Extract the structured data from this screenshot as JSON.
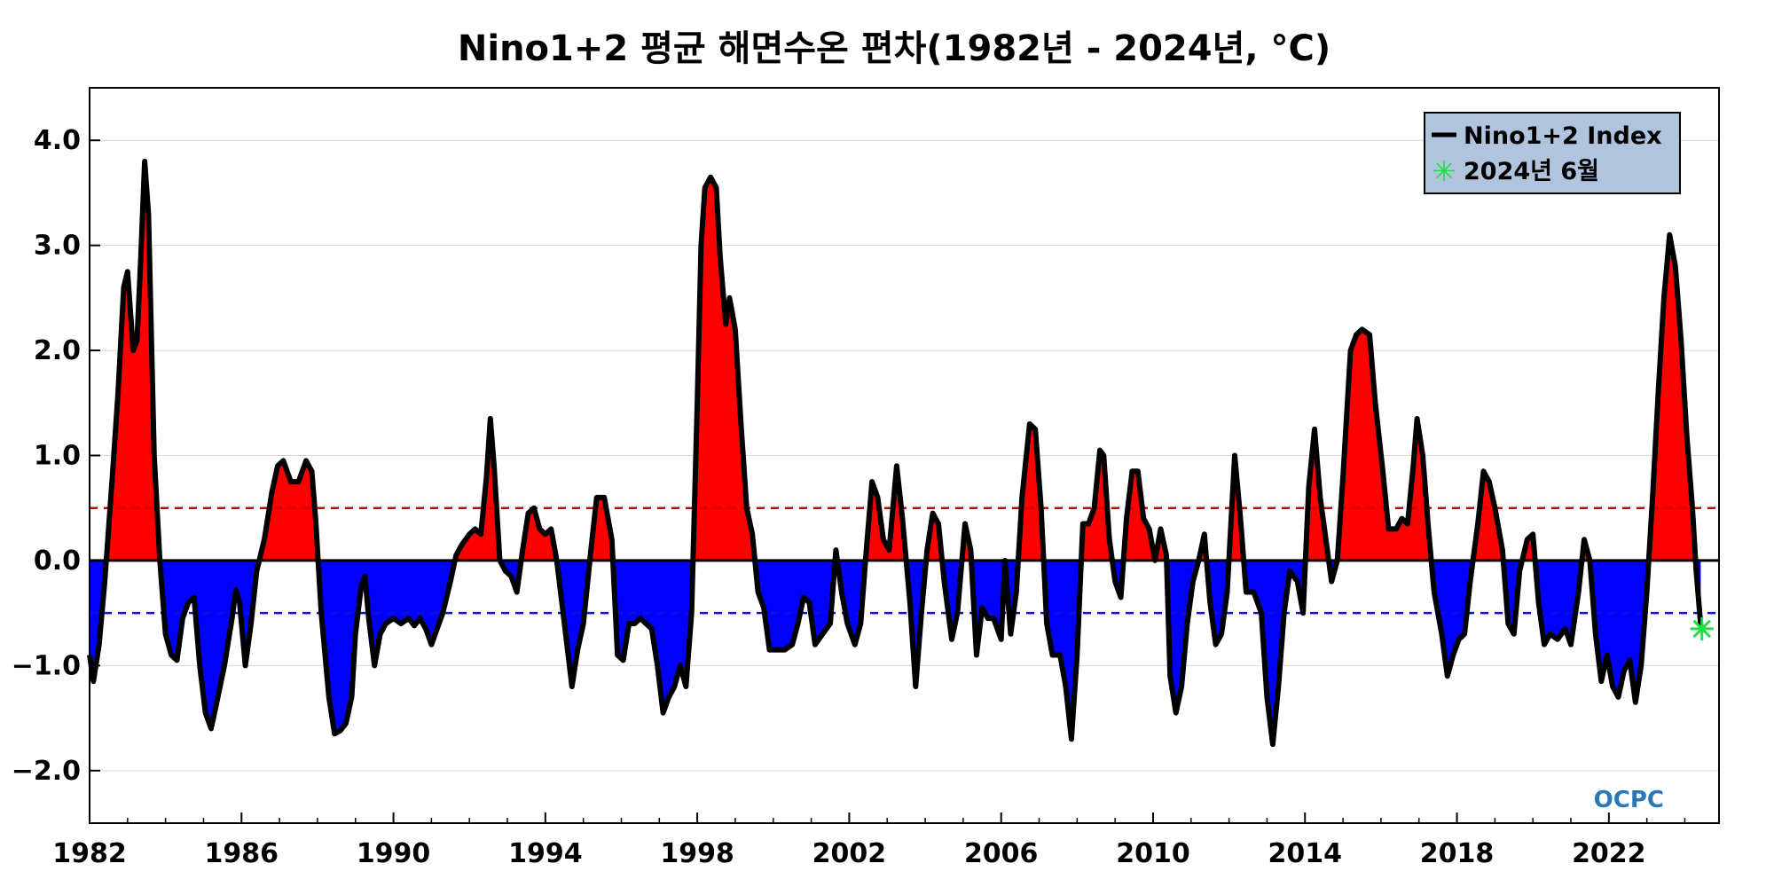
{
  "chart_data": {
    "type": "area",
    "title": "Nino1+2 평균 해면수온 편차(1982년 - 2024년, °C)",
    "xlabel": "",
    "ylabel": "",
    "xlim": [
      1982,
      2024.9
    ],
    "ylim": [
      -2.5,
      4.5
    ],
    "x_ticks": [
      1982,
      1986,
      1990,
      1994,
      1998,
      2002,
      2006,
      2010,
      2014,
      2018,
      2022
    ],
    "y_ticks": [
      -2,
      -1,
      0,
      1,
      2,
      3,
      4
    ],
    "y_tick_labels": [
      "−2.0",
      "−1.0",
      "0.0",
      "1.0",
      "2.0",
      "3.0",
      "4.0"
    ],
    "x_tick_labels": [
      "1982",
      "1986",
      "1990",
      "1994",
      "1998",
      "2002",
      "2006",
      "2010",
      "2014",
      "2018",
      "2022"
    ],
    "grid": true,
    "reference_lines": [
      {
        "y": 0.5,
        "color": "#d00000",
        "style": "dashed"
      },
      {
        "y": -0.5,
        "color": "#1010d0",
        "style": "dashed"
      },
      {
        "y": 0.0,
        "color": "#000000",
        "style": "solid"
      }
    ],
    "fill_colors": {
      "positive": "#ff0000",
      "negative": "#0000ff"
    },
    "legend": {
      "position": "top-right",
      "background": "#b0c4de",
      "entries": [
        {
          "label": "Nino1+2 Index",
          "marker": "line",
          "color": "#000000"
        },
        {
          "label": "2024년 6월",
          "marker": "asterisk",
          "color": "#22dd44"
        }
      ]
    },
    "series": [
      {
        "name": "Nino1+2 Index",
        "color": "#000000",
        "points": [
          [
            1982.0,
            -0.9
          ],
          [
            1982.1,
            -1.15
          ],
          [
            1982.25,
            -0.8
          ],
          [
            1982.4,
            -0.2
          ],
          [
            1982.6,
            0.8
          ],
          [
            1982.75,
            1.6
          ],
          [
            1982.9,
            2.6
          ],
          [
            1983.0,
            2.75
          ],
          [
            1983.15,
            2.0
          ],
          [
            1983.25,
            2.1
          ],
          [
            1983.35,
            2.9
          ],
          [
            1983.45,
            3.8
          ],
          [
            1983.55,
            3.3
          ],
          [
            1983.7,
            1.0
          ],
          [
            1983.85,
            0.0
          ],
          [
            1984.0,
            -0.7
          ],
          [
            1984.15,
            -0.9
          ],
          [
            1984.3,
            -0.95
          ],
          [
            1984.45,
            -0.55
          ],
          [
            1984.6,
            -0.4
          ],
          [
            1984.75,
            -0.35
          ],
          [
            1984.9,
            -1.0
          ],
          [
            1985.05,
            -1.45
          ],
          [
            1985.2,
            -1.6
          ],
          [
            1985.35,
            -1.35
          ],
          [
            1985.55,
            -1.0
          ],
          [
            1985.75,
            -0.55
          ],
          [
            1985.85,
            -0.28
          ],
          [
            1985.95,
            -0.4
          ],
          [
            1986.1,
            -1.0
          ],
          [
            1986.25,
            -0.6
          ],
          [
            1986.4,
            -0.1
          ],
          [
            1986.6,
            0.2
          ],
          [
            1986.8,
            0.65
          ],
          [
            1986.95,
            0.9
          ],
          [
            1987.1,
            0.95
          ],
          [
            1987.3,
            0.75
          ],
          [
            1987.5,
            0.75
          ],
          [
            1987.7,
            0.95
          ],
          [
            1987.85,
            0.85
          ],
          [
            1987.95,
            0.4
          ],
          [
            1988.1,
            -0.5
          ],
          [
            1988.3,
            -1.3
          ],
          [
            1988.45,
            -1.65
          ],
          [
            1988.6,
            -1.62
          ],
          [
            1988.75,
            -1.55
          ],
          [
            1988.9,
            -1.3
          ],
          [
            1989.0,
            -0.7
          ],
          [
            1989.15,
            -0.25
          ],
          [
            1989.25,
            -0.15
          ],
          [
            1989.35,
            -0.55
          ],
          [
            1989.5,
            -1.0
          ],
          [
            1989.65,
            -0.7
          ],
          [
            1989.8,
            -0.6
          ],
          [
            1990.0,
            -0.55
          ],
          [
            1990.2,
            -0.6
          ],
          [
            1990.4,
            -0.55
          ],
          [
            1990.55,
            -0.62
          ],
          [
            1990.7,
            -0.55
          ],
          [
            1990.85,
            -0.65
          ],
          [
            1991.0,
            -0.8
          ],
          [
            1991.15,
            -0.65
          ],
          [
            1991.3,
            -0.5
          ],
          [
            1991.5,
            -0.2
          ],
          [
            1991.65,
            0.05
          ],
          [
            1991.8,
            0.15
          ],
          [
            1992.0,
            0.25
          ],
          [
            1992.15,
            0.3
          ],
          [
            1992.3,
            0.25
          ],
          [
            1992.45,
            0.8
          ],
          [
            1992.55,
            1.35
          ],
          [
            1992.65,
            0.9
          ],
          [
            1992.8,
            0.0
          ],
          [
            1992.95,
            -0.1
          ],
          [
            1993.1,
            -0.15
          ],
          [
            1993.25,
            -0.3
          ],
          [
            1993.4,
            0.1
          ],
          [
            1993.55,
            0.45
          ],
          [
            1993.7,
            0.5
          ],
          [
            1993.85,
            0.3
          ],
          [
            1994.0,
            0.25
          ],
          [
            1994.15,
            0.3
          ],
          [
            1994.3,
            0.0
          ],
          [
            1994.5,
            -0.6
          ],
          [
            1994.7,
            -1.2
          ],
          [
            1994.85,
            -0.85
          ],
          [
            1995.0,
            -0.6
          ],
          [
            1995.2,
            0.1
          ],
          [
            1995.35,
            0.6
          ],
          [
            1995.55,
            0.6
          ],
          [
            1995.75,
            0.2
          ],
          [
            1995.9,
            -0.9
          ],
          [
            1996.05,
            -0.95
          ],
          [
            1996.2,
            -0.6
          ],
          [
            1996.35,
            -0.6
          ],
          [
            1996.5,
            -0.55
          ],
          [
            1996.65,
            -0.6
          ],
          [
            1996.8,
            -0.65
          ],
          [
            1996.95,
            -1.0
          ],
          [
            1997.1,
            -1.45
          ],
          [
            1997.25,
            -1.3
          ],
          [
            1997.4,
            -1.2
          ],
          [
            1997.55,
            -1.0
          ],
          [
            1997.7,
            -1.2
          ],
          [
            1997.85,
            -0.5
          ],
          [
            1998.0,
            1.5
          ],
          [
            1998.1,
            3.0
          ],
          [
            1998.2,
            3.55
          ],
          [
            1998.35,
            3.65
          ],
          [
            1998.5,
            3.55
          ],
          [
            1998.6,
            2.9
          ],
          [
            1998.75,
            2.25
          ],
          [
            1998.85,
            2.5
          ],
          [
            1999.0,
            2.2
          ],
          [
            1999.15,
            1.3
          ],
          [
            1999.3,
            0.5
          ],
          [
            1999.45,
            0.25
          ],
          [
            1999.6,
            -0.3
          ],
          [
            1999.75,
            -0.45
          ],
          [
            1999.9,
            -0.85
          ],
          [
            2000.1,
            -0.85
          ],
          [
            2000.3,
            -0.85
          ],
          [
            2000.5,
            -0.8
          ],
          [
            2000.65,
            -0.6
          ],
          [
            2000.8,
            -0.35
          ],
          [
            2000.95,
            -0.4
          ],
          [
            2001.1,
            -0.8
          ],
          [
            2001.3,
            -0.7
          ],
          [
            2001.5,
            -0.6
          ],
          [
            2001.65,
            0.1
          ],
          [
            2001.8,
            -0.3
          ],
          [
            2001.95,
            -0.6
          ],
          [
            2002.15,
            -0.8
          ],
          [
            2002.3,
            -0.6
          ],
          [
            2002.45,
            0.1
          ],
          [
            2002.6,
            0.75
          ],
          [
            2002.75,
            0.6
          ],
          [
            2002.9,
            0.2
          ],
          [
            2003.05,
            0.1
          ],
          [
            2003.25,
            0.9
          ],
          [
            2003.4,
            0.4
          ],
          [
            2003.6,
            -0.4
          ],
          [
            2003.75,
            -1.2
          ],
          [
            2003.9,
            -0.5
          ],
          [
            2004.05,
            0.1
          ],
          [
            2004.2,
            0.45
          ],
          [
            2004.35,
            0.35
          ],
          [
            2004.5,
            -0.2
          ],
          [
            2004.7,
            -0.75
          ],
          [
            2004.85,
            -0.5
          ],
          [
            2005.05,
            0.35
          ],
          [
            2005.2,
            0.1
          ],
          [
            2005.35,
            -0.9
          ],
          [
            2005.5,
            -0.45
          ],
          [
            2005.65,
            -0.55
          ],
          [
            2005.8,
            -0.55
          ],
          [
            2006.0,
            -0.75
          ],
          [
            2006.1,
            0.0
          ],
          [
            2006.25,
            -0.7
          ],
          [
            2006.4,
            -0.3
          ],
          [
            2006.55,
            0.6
          ],
          [
            2006.75,
            1.3
          ],
          [
            2006.9,
            1.25
          ],
          [
            2007.05,
            0.5
          ],
          [
            2007.2,
            -0.6
          ],
          [
            2007.35,
            -0.9
          ],
          [
            2007.55,
            -0.9
          ],
          [
            2007.7,
            -1.2
          ],
          [
            2007.85,
            -1.7
          ],
          [
            2008.0,
            -0.9
          ],
          [
            2008.15,
            0.35
          ],
          [
            2008.3,
            0.35
          ],
          [
            2008.45,
            0.5
          ],
          [
            2008.6,
            1.05
          ],
          [
            2008.7,
            1.0
          ],
          [
            2008.85,
            0.2
          ],
          [
            2009.0,
            -0.2
          ],
          [
            2009.15,
            -0.35
          ],
          [
            2009.3,
            0.4
          ],
          [
            2009.45,
            0.85
          ],
          [
            2009.6,
            0.85
          ],
          [
            2009.75,
            0.4
          ],
          [
            2009.9,
            0.3
          ],
          [
            2010.05,
            0.0
          ],
          [
            2010.2,
            0.3
          ],
          [
            2010.35,
            0.05
          ],
          [
            2010.45,
            -1.1
          ],
          [
            2010.6,
            -1.45
          ],
          [
            2010.75,
            -1.2
          ],
          [
            2010.9,
            -0.6
          ],
          [
            2011.05,
            -0.2
          ],
          [
            2011.2,
            0.0
          ],
          [
            2011.35,
            0.25
          ],
          [
            2011.5,
            -0.4
          ],
          [
            2011.65,
            -0.8
          ],
          [
            2011.8,
            -0.7
          ],
          [
            2011.95,
            -0.3
          ],
          [
            2012.15,
            1.0
          ],
          [
            2012.3,
            0.4
          ],
          [
            2012.45,
            -0.3
          ],
          [
            2012.65,
            -0.3
          ],
          [
            2012.85,
            -0.5
          ],
          [
            2013.0,
            -1.3
          ],
          [
            2013.15,
            -1.75
          ],
          [
            2013.3,
            -1.2
          ],
          [
            2013.45,
            -0.5
          ],
          [
            2013.6,
            -0.1
          ],
          [
            2013.8,
            -0.2
          ],
          [
            2013.95,
            -0.5
          ],
          [
            2014.1,
            0.7
          ],
          [
            2014.25,
            1.25
          ],
          [
            2014.4,
            0.6
          ],
          [
            2014.55,
            0.2
          ],
          [
            2014.7,
            -0.2
          ],
          [
            2014.85,
            0.0
          ],
          [
            2015.0,
            0.8
          ],
          [
            2015.2,
            2.0
          ],
          [
            2015.35,
            2.15
          ],
          [
            2015.5,
            2.2
          ],
          [
            2015.7,
            2.15
          ],
          [
            2015.85,
            1.5
          ],
          [
            2016.05,
            0.85
          ],
          [
            2016.2,
            0.3
          ],
          [
            2016.4,
            0.3
          ],
          [
            2016.55,
            0.4
          ],
          [
            2016.7,
            0.35
          ],
          [
            2016.85,
            0.9
          ],
          [
            2016.95,
            1.35
          ],
          [
            2017.1,
            1.0
          ],
          [
            2017.25,
            0.3
          ],
          [
            2017.4,
            -0.3
          ],
          [
            2017.6,
            -0.7
          ],
          [
            2017.75,
            -1.1
          ],
          [
            2017.9,
            -0.9
          ],
          [
            2018.05,
            -0.75
          ],
          [
            2018.2,
            -0.7
          ],
          [
            2018.35,
            -0.2
          ],
          [
            2018.55,
            0.35
          ],
          [
            2018.7,
            0.85
          ],
          [
            2018.85,
            0.75
          ],
          [
            2019.0,
            0.5
          ],
          [
            2019.2,
            0.1
          ],
          [
            2019.35,
            -0.6
          ],
          [
            2019.5,
            -0.7
          ],
          [
            2019.65,
            -0.1
          ],
          [
            2019.85,
            0.2
          ],
          [
            2020.0,
            0.25
          ],
          [
            2020.15,
            -0.4
          ],
          [
            2020.3,
            -0.8
          ],
          [
            2020.45,
            -0.7
          ],
          [
            2020.65,
            -0.75
          ],
          [
            2020.85,
            -0.65
          ],
          [
            2021.0,
            -0.8
          ],
          [
            2021.2,
            -0.3
          ],
          [
            2021.35,
            0.2
          ],
          [
            2021.5,
            0.0
          ],
          [
            2021.65,
            -0.7
          ],
          [
            2021.8,
            -1.15
          ],
          [
            2021.95,
            -0.9
          ],
          [
            2022.1,
            -1.2
          ],
          [
            2022.25,
            -1.3
          ],
          [
            2022.4,
            -1.05
          ],
          [
            2022.55,
            -0.95
          ],
          [
            2022.7,
            -1.35
          ],
          [
            2022.85,
            -1.0
          ],
          [
            2023.0,
            -0.3
          ],
          [
            2023.15,
            0.6
          ],
          [
            2023.3,
            1.6
          ],
          [
            2023.45,
            2.5
          ],
          [
            2023.6,
            3.1
          ],
          [
            2023.75,
            2.8
          ],
          [
            2023.9,
            2.1
          ],
          [
            2024.05,
            1.2
          ],
          [
            2024.2,
            0.5
          ],
          [
            2024.3,
            -0.1
          ],
          [
            2024.42,
            -0.62
          ]
        ]
      }
    ],
    "highlight_point": {
      "label": "2024년 6월",
      "x": 2024.45,
      "y": -0.65,
      "color": "#22dd44"
    }
  },
  "logo": {
    "text": "OCPC"
  }
}
